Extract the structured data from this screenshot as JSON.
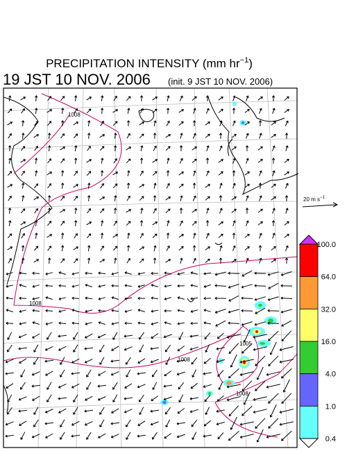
{
  "header": {
    "title": "PRECIPITATION INTENSITY (mm hr",
    "title_sup": "−1",
    "title_end": ")",
    "time": "19 JST 10 NOV. 2006",
    "init": "(init. 9 JST 10 NOV. 2006)"
  },
  "scale": {
    "label": "20 m s",
    "sup": "−1"
  },
  "colorbar": {
    "labels": [
      "100.0",
      "64.0",
      "32.0",
      "16.0",
      "4.0",
      "1.0",
      "0.4"
    ],
    "colors": [
      "#ff0000",
      "#ff9933",
      "#ffff66",
      "#33cc33",
      "#6666ff",
      "#66ffff"
    ],
    "top_color": "#cc33ff",
    "bottom_color": "#ffffff"
  },
  "isobars": {
    "labels": [
      "1008",
      "1008",
      "1008",
      "1005",
      "1008"
    ]
  }
}
